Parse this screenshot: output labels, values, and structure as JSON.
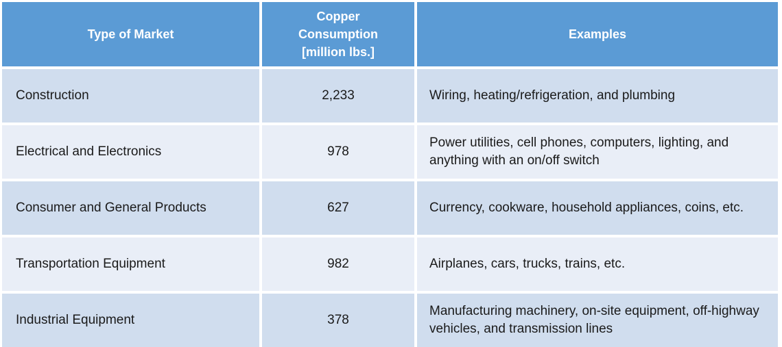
{
  "table": {
    "headers": {
      "type": "Type of Market",
      "consumption_line1": "Copper",
      "consumption_line2": "Consumption",
      "consumption_line3": "[million lbs.]",
      "examples": "Examples"
    },
    "rows": [
      {
        "type": "Construction",
        "consumption": "2,233",
        "examples": "Wiring, heating/refrigeration, and plumbing"
      },
      {
        "type": "Electrical and Electronics",
        "consumption": "978",
        "examples": "Power utilities, cell phones, computers, lighting, and anything with an on/off switch"
      },
      {
        "type": "Consumer and General Products",
        "consumption": "627",
        "examples": "Currency, cookware, household appliances, coins, etc."
      },
      {
        "type": "Transportation Equipment",
        "consumption": "982",
        "examples": "Airplanes, cars, trucks, trains, etc."
      },
      {
        "type": "Industrial Equipment",
        "consumption": "378",
        "examples": "Manufacturing machinery, on-site equipment, off-highway vehicles, and transmission lines"
      }
    ]
  }
}
